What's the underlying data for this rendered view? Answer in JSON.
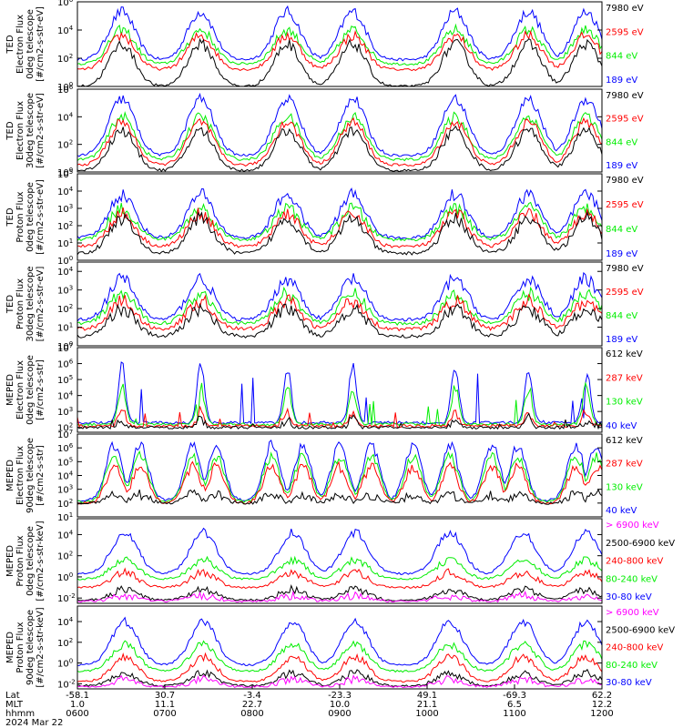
{
  "figure": {
    "row_labels": [
      "Lat",
      "MLT",
      "hhmm"
    ],
    "date": "2024 Mar 22",
    "x_ticks": [
      {
        "lat": "-58.1",
        "mlt": "1.0",
        "hhmm": "0600"
      },
      {
        "lat": "30.7",
        "mlt": "11.1",
        "hhmm": "0700"
      },
      {
        "lat": "-3.4",
        "mlt": "22.7",
        "hhmm": "0800"
      },
      {
        "lat": "-23.3",
        "mlt": "10.0",
        "hhmm": "0900"
      },
      {
        "lat": "49.1",
        "mlt": "21.1",
        "hhmm": "1000"
      },
      {
        "lat": "-69.3",
        "mlt": "6.5",
        "hhmm": "1100"
      },
      {
        "lat": "62.2",
        "mlt": "12.2",
        "hhmm": "1200"
      }
    ]
  },
  "colors": {
    "blue": "#0000ff",
    "red": "#ff0000",
    "green": "#00ee00",
    "black": "#000000",
    "magenta": "#ff00ff"
  },
  "chart_data": [
    {
      "type": "line",
      "ylabel": [
        "TED",
        "Electron Flux",
        "0deg telescope",
        "[#/cm2-s-str-eV]"
      ],
      "y_scale": "log",
      "y_ticks": [
        {
          "exp": "6",
          "v": 6
        },
        {
          "exp": "4",
          "v": 4
        },
        {
          "exp": "2",
          "v": 2
        },
        {
          "exp": "0",
          "v": 0
        }
      ],
      "ylim": [
        0,
        6
      ],
      "series": [
        {
          "name": "7980 eV",
          "color": "#000000",
          "base": 0,
          "peak": 3.0,
          "mode": "aurora"
        },
        {
          "name": "2595 eV",
          "color": "#ff0000",
          "base": 1.2,
          "peak": 3.6,
          "mode": "aurora"
        },
        {
          "name": "844 eV",
          "color": "#00ee00",
          "base": 1.6,
          "peak": 4.0,
          "mode": "aurora"
        },
        {
          "name": "189 eV",
          "color": "#0000ff",
          "base": 1.9,
          "peak": 5.3,
          "mode": "aurora"
        }
      ]
    },
    {
      "type": "line",
      "ylabel": [
        "TED",
        "Electron Flux",
        "30deg telescope",
        "[#/cm2-s-str-eV]"
      ],
      "y_scale": "log",
      "y_ticks": [
        {
          "exp": "6",
          "v": 6
        },
        {
          "exp": "4",
          "v": 4
        },
        {
          "exp": "2",
          "v": 2
        },
        {
          "exp": "0",
          "v": 0
        }
      ],
      "ylim": [
        0,
        6
      ],
      "series": [
        {
          "name": "7980 eV",
          "color": "#000000",
          "base": 0.1,
          "peak": 3.0,
          "mode": "aurora"
        },
        {
          "name": "2595 eV",
          "color": "#ff0000",
          "base": 0.5,
          "peak": 3.6,
          "mode": "aurora"
        },
        {
          "name": "844 eV",
          "color": "#00ee00",
          "base": 0.9,
          "peak": 4.0,
          "mode": "aurora"
        },
        {
          "name": "189 eV",
          "color": "#0000ff",
          "base": 1.2,
          "peak": 5.3,
          "mode": "aurora"
        }
      ]
    },
    {
      "type": "line",
      "ylabel": [
        "TED",
        "Proton Flux",
        "0deg telescope",
        "[#/cm2-s-str-eV]"
      ],
      "y_scale": "log",
      "y_ticks": [
        {
          "exp": "5",
          "v": 5
        },
        {
          "exp": "4",
          "v": 4
        },
        {
          "exp": "3",
          "v": 3
        },
        {
          "exp": "2",
          "v": 2
        },
        {
          "exp": "1",
          "v": 1
        },
        {
          "exp": "0",
          "v": 0
        }
      ],
      "ylim": [
        0,
        5
      ],
      "series": [
        {
          "name": "7980 eV",
          "color": "#000000",
          "base": 0.4,
          "peak": 2.4,
          "mode": "aurora"
        },
        {
          "name": "2595 eV",
          "color": "#ff0000",
          "base": 0.8,
          "peak": 2.7,
          "mode": "aurora"
        },
        {
          "name": "844 eV",
          "color": "#00ee00",
          "base": 1.2,
          "peak": 3.0,
          "mode": "aurora"
        },
        {
          "name": "189 eV",
          "color": "#0000ff",
          "base": 1.3,
          "peak": 3.8,
          "mode": "aurora"
        }
      ]
    },
    {
      "type": "line",
      "ylabel": [
        "TED",
        "Proton Flux",
        "30deg telescope",
        "[#/cm2-s-str-eV]"
      ],
      "y_scale": "log",
      "y_ticks": [
        {
          "exp": "4",
          "v": 4
        },
        {
          "exp": "3",
          "v": 3
        },
        {
          "exp": "2",
          "v": 2
        },
        {
          "exp": "1",
          "v": 1
        },
        {
          "exp": "0",
          "v": 0
        }
      ],
      "ylim": [
        0,
        4.5
      ],
      "series": [
        {
          "name": "7980 eV",
          "color": "#000000",
          "base": 0.5,
          "peak": 2.0,
          "mode": "aurora"
        },
        {
          "name": "2595 eV",
          "color": "#ff0000",
          "base": 0.9,
          "peak": 2.4,
          "mode": "aurora"
        },
        {
          "name": "844 eV",
          "color": "#00ee00",
          "base": 1.2,
          "peak": 2.8,
          "mode": "aurora"
        },
        {
          "name": "189 eV",
          "color": "#0000ff",
          "base": 1.4,
          "peak": 3.6,
          "mode": "aurora"
        }
      ]
    },
    {
      "type": "line",
      "ylabel": [
        "MEPED",
        "Electron Flux",
        "0deg telescope",
        "[#/cm2-s-str]"
      ],
      "y_scale": "log",
      "y_ticks": [
        {
          "exp": "7",
          "v": 7
        },
        {
          "exp": "6",
          "v": 6
        },
        {
          "exp": "5",
          "v": 5
        },
        {
          "exp": "4",
          "v": 4
        },
        {
          "exp": "3",
          "v": 3
        },
        {
          "exp": "2",
          "v": 2
        }
      ],
      "ylim": [
        1.7,
        7
      ],
      "series": [
        {
          "name": "612 keV",
          "color": "#000000",
          "base": 2.0,
          "peak": 2.5,
          "mode": "spiky"
        },
        {
          "name": "287 keV",
          "color": "#ff0000",
          "base": 2.1,
          "peak": 3.0,
          "mode": "spiky"
        },
        {
          "name": "130 keV",
          "color": "#00ee00",
          "base": 2.2,
          "peak": 4.5,
          "mode": "spiky"
        },
        {
          "name": "40 keV",
          "color": "#0000ff",
          "base": 2.3,
          "peak": 5.8,
          "mode": "spiky"
        }
      ]
    },
    {
      "type": "line",
      "ylabel": [
        "MEPED",
        "Electron Flux",
        "90deg telescope",
        "[#/cm2-s-str]"
      ],
      "y_scale": "log",
      "y_ticks": [
        {
          "exp": "7",
          "v": 7
        },
        {
          "exp": "6",
          "v": 6
        },
        {
          "exp": "5",
          "v": 5
        },
        {
          "exp": "4",
          "v": 4
        },
        {
          "exp": "3",
          "v": 3
        },
        {
          "exp": "2",
          "v": 2
        },
        {
          "exp": "1",
          "v": 1
        }
      ],
      "ylim": [
        1,
        7
      ],
      "series": [
        {
          "name": "612 keV",
          "color": "#000000",
          "base": 2.0,
          "peak": 2.6,
          "mode": "belt"
        },
        {
          "name": "287 keV",
          "color": "#ff0000",
          "base": 2.0,
          "peak": 4.6,
          "mode": "belt"
        },
        {
          "name": "130 keV",
          "color": "#00ee00",
          "base": 2.1,
          "peak": 5.4,
          "mode": "belt"
        },
        {
          "name": "40 keV",
          "color": "#0000ff",
          "base": 2.2,
          "peak": 6.2,
          "mode": "belt"
        }
      ]
    },
    {
      "type": "line",
      "ylabel": [
        "MEPED",
        "Proton Flux",
        "0deg telescope",
        "[#/cm2-s-str-keV]"
      ],
      "y_scale": "log",
      "y_ticks": [
        {
          "exp": "4",
          "v": 4
        },
        {
          "exp": "2",
          "v": 2
        },
        {
          "exp": "0",
          "v": 0
        },
        {
          "exp": "-2",
          "v": -2
        }
      ],
      "ylim": [
        -2.5,
        5.5
      ],
      "series": [
        {
          "name": "> 6900 keV",
          "color": "#ff00ff",
          "base": -2.3,
          "peak": -1.8,
          "mode": "proton"
        },
        {
          "name": "2500-6900 keV",
          "color": "#000000",
          "base": -2.2,
          "peak": -1.2,
          "mode": "proton"
        },
        {
          "name": "240-800 keV",
          "color": "#ff0000",
          "base": -1.0,
          "peak": 0.4,
          "mode": "proton"
        },
        {
          "name": "80-240 keV",
          "color": "#00ee00",
          "base": -0.2,
          "peak": 1.6,
          "mode": "proton"
        },
        {
          "name": "30-80 keV",
          "color": "#0000ff",
          "base": 0.3,
          "peak": 4.2,
          "mode": "proton"
        }
      ]
    },
    {
      "type": "line",
      "ylabel": [
        "MEPED",
        "Proton Flux",
        "90deg telescope",
        "[#/cm2-s-str-keV]"
      ],
      "y_scale": "log",
      "y_ticks": [
        {
          "exp": "4",
          "v": 4
        },
        {
          "exp": "2",
          "v": 2
        },
        {
          "exp": "0",
          "v": 0
        },
        {
          "exp": "-2",
          "v": -2
        }
      ],
      "ylim": [
        -2.5,
        5.5
      ],
      "series": [
        {
          "name": "> 6900 keV",
          "color": "#ff00ff",
          "base": -2.3,
          "peak": -1.6,
          "mode": "proton"
        },
        {
          "name": "2500-6900 keV",
          "color": "#000000",
          "base": -2.2,
          "peak": -1.0,
          "mode": "proton"
        },
        {
          "name": "240-800 keV",
          "color": "#ff0000",
          "base": -1.8,
          "peak": 0.6,
          "mode": "proton"
        },
        {
          "name": "80-240 keV",
          "color": "#00ee00",
          "base": -0.8,
          "peak": 1.8,
          "mode": "proton"
        },
        {
          "name": "30-80 keV",
          "color": "#0000ff",
          "base": -0.2,
          "peak": 4.0,
          "mode": "proton"
        }
      ]
    }
  ]
}
